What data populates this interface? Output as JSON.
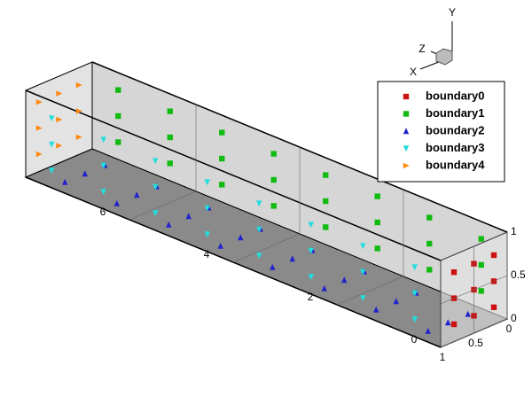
{
  "chart_data": {
    "type": "scatter3d",
    "axis_labels": {
      "x": "X",
      "y": "Y",
      "z": "Z"
    },
    "xlim": [
      0,
      8
    ],
    "ylim": [
      0,
      1
    ],
    "zlim": [
      0,
      1
    ],
    "xticks": [
      0,
      2,
      4,
      6
    ],
    "yticks": [
      0,
      0.5,
      1
    ],
    "zticks": [
      0,
      0.5,
      1
    ],
    "series": [
      {
        "name": "boundary0",
        "color": "#cc1111",
        "marker": "square",
        "x": [
          0,
          0,
          0,
          0,
          0,
          0,
          0,
          0,
          0
        ],
        "y": [
          0.2,
          0.2,
          0.2,
          0.5,
          0.5,
          0.5,
          0.8,
          0.8,
          0.8
        ],
        "z": [
          0.2,
          0.5,
          0.8,
          0.2,
          0.5,
          0.8,
          0.2,
          0.5,
          0.8
        ]
      },
      {
        "name": "boundary1",
        "color": "#11bb11",
        "marker": "square",
        "x": [
          0.5,
          0.5,
          0.5,
          1.5,
          1.5,
          1.5,
          2.5,
          2.5,
          2.5,
          3.5,
          3.5,
          3.5,
          4.5,
          4.5,
          4.5,
          5.5,
          5.5,
          5.5,
          6.5,
          6.5,
          6.5,
          7.5,
          7.5,
          7.5
        ],
        "y": [
          0.2,
          0.5,
          0.8,
          0.2,
          0.5,
          0.8,
          0.2,
          0.5,
          0.8,
          0.2,
          0.5,
          0.8,
          0.2,
          0.5,
          0.8,
          0.2,
          0.5,
          0.8,
          0.2,
          0.5,
          0.8,
          0.2,
          0.5,
          0.8
        ],
        "z": [
          0,
          0,
          0,
          0,
          0,
          0,
          0,
          0,
          0,
          0,
          0,
          0,
          0,
          0,
          0,
          0,
          0,
          0,
          0,
          0,
          0,
          0,
          0,
          0
        ]
      },
      {
        "name": "boundary2",
        "color": "#2222cc",
        "marker": "triangle-up",
        "x": [
          0.5,
          0.5,
          0.5,
          1.5,
          1.5,
          1.5,
          2.5,
          2.5,
          2.5,
          3.5,
          3.5,
          3.5,
          4.5,
          4.5,
          4.5,
          5.5,
          5.5,
          5.5,
          6.5,
          6.5,
          6.5,
          7.5,
          7.5,
          7.5
        ],
        "y": [
          0,
          0,
          0,
          0,
          0,
          0,
          0,
          0,
          0,
          0,
          0,
          0,
          0,
          0,
          0,
          0,
          0,
          0,
          0,
          0,
          0,
          0,
          0,
          0
        ],
        "z": [
          0.2,
          0.5,
          0.8,
          0.2,
          0.5,
          0.8,
          0.2,
          0.5,
          0.8,
          0.2,
          0.5,
          0.8,
          0.2,
          0.5,
          0.8,
          0.2,
          0.5,
          0.8,
          0.2,
          0.5,
          0.8,
          0.2,
          0.5,
          0.8
        ]
      },
      {
        "name": "boundary3",
        "color": "#22dddd",
        "marker": "triangle-down",
        "x": [
          0.5,
          0.5,
          0.5,
          1.5,
          1.5,
          1.5,
          2.5,
          2.5,
          2.5,
          3.5,
          3.5,
          3.5,
          4.5,
          4.5,
          4.5,
          5.5,
          5.5,
          5.5,
          6.5,
          6.5,
          6.5,
          7.5,
          7.5,
          7.5
        ],
        "y": [
          0.2,
          0.5,
          0.8,
          0.2,
          0.5,
          0.8,
          0.2,
          0.5,
          0.8,
          0.2,
          0.5,
          0.8,
          0.2,
          0.5,
          0.8,
          0.2,
          0.5,
          0.8,
          0.2,
          0.5,
          0.8,
          0.2,
          0.5,
          0.8
        ],
        "z": [
          1,
          1,
          1,
          1,
          1,
          1,
          1,
          1,
          1,
          1,
          1,
          1,
          1,
          1,
          1,
          1,
          1,
          1,
          1,
          1,
          1,
          1,
          1,
          1
        ]
      },
      {
        "name": "boundary4",
        "color": "#ff8811",
        "marker": "triangle-right",
        "x": [
          8,
          8,
          8,
          8,
          8,
          8,
          8,
          8,
          8
        ],
        "y": [
          0.2,
          0.2,
          0.2,
          0.5,
          0.5,
          0.5,
          0.8,
          0.8,
          0.8
        ],
        "z": [
          0.2,
          0.5,
          0.8,
          0.2,
          0.5,
          0.8,
          0.2,
          0.5,
          0.8
        ]
      }
    ]
  }
}
